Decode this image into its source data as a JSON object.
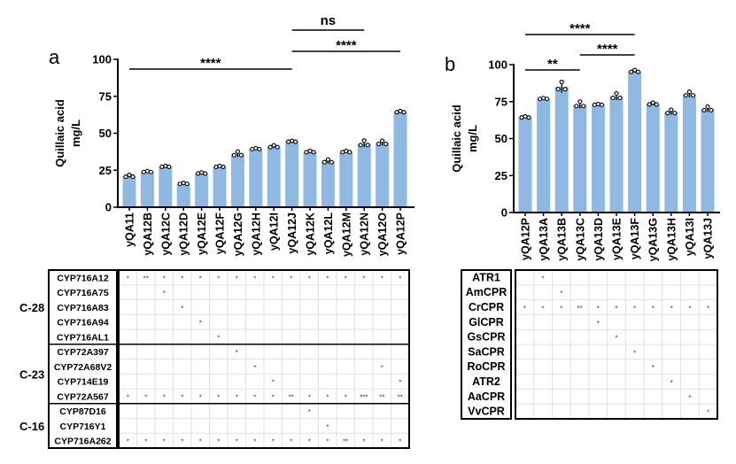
{
  "chart_data": [
    {
      "panel": "a",
      "type": "bar",
      "ylabel": [
        "Quillaic acid",
        "mg/L"
      ],
      "ylim": [
        0,
        100
      ],
      "yticks": [
        0,
        25,
        50,
        75,
        100
      ],
      "bar_color": "#8fb8e3",
      "categories": [
        "yQA11",
        "yQA12B",
        "yQA12C",
        "yQA12D",
        "yQA12E",
        "yQA12F",
        "yQA12G",
        "yQA12H",
        "yQA12I",
        "yQA12J",
        "yQA12K",
        "yQA12L",
        "yQA12M",
        "yQA12N",
        "yQA12O",
        "yQA12P"
      ],
      "values": [
        21,
        24,
        27.5,
        16,
        23,
        27.5,
        36,
        39.5,
        41,
        44.5,
        37.5,
        31,
        37.5,
        43,
        43.5,
        64.5
      ],
      "sd": [
        1,
        0.5,
        0.5,
        0.5,
        0.5,
        0.5,
        2,
        0.5,
        1,
        0.5,
        0.7,
        1.5,
        0.7,
        2.5,
        1.8,
        0.6
      ],
      "significance": [
        {
          "from": "yQA11",
          "to": "yQA12J",
          "label": "****"
        },
        {
          "from": "yQA12J",
          "to": "yQA12N",
          "label": "ns"
        },
        {
          "from": "yQA12J",
          "to": "yQA12P",
          "label": "****"
        }
      ],
      "table": {
        "groups": [
          {
            "label": "C-28",
            "rows": 5
          },
          {
            "label": "C-23",
            "rows": 4
          },
          {
            "label": "C-16",
            "rows": 3
          }
        ],
        "rows": [
          {
            "gene": "CYP716A12",
            "cells": [
              "*",
              "**",
              "*",
              "*",
              "*",
              "*",
              "*",
              "*",
              "*",
              "*",
              "*",
              "*",
              "*",
              "*",
              "*",
              "*"
            ]
          },
          {
            "gene": "CYP716A75",
            "cells": [
              "",
              "",
              "*",
              "",
              "",
              "",
              "",
              "",
              "",
              "",
              "",
              "",
              "",
              "",
              "",
              ""
            ]
          },
          {
            "gene": "CYP716A83",
            "cells": [
              "",
              "",
              "",
              "*",
              "",
              "",
              "",
              "",
              "",
              "",
              "",
              "",
              "",
              "",
              "",
              ""
            ]
          },
          {
            "gene": "CYP716A94",
            "cells": [
              "",
              "",
              "",
              "",
              "*",
              "",
              "",
              "",
              "",
              "",
              "",
              "",
              "",
              "",
              "",
              ""
            ]
          },
          {
            "gene": "CYP716AL1",
            "cells": [
              "",
              "",
              "",
              "",
              "",
              "*",
              "",
              "",
              "",
              "",
              "",
              "",
              "",
              "",
              "",
              ""
            ]
          },
          {
            "gene": "CYP72A397",
            "cells": [
              "",
              "",
              "",
              "",
              "",
              "",
              "*",
              "",
              "",
              "",
              "",
              "",
              "",
              "",
              "",
              ""
            ]
          },
          {
            "gene": "CYP72A68V2",
            "cells": [
              "",
              "",
              "",
              "",
              "",
              "",
              "",
              "*",
              "",
              "",
              "",
              "",
              "",
              "",
              "*",
              ""
            ]
          },
          {
            "gene": "CYP714E19",
            "cells": [
              "",
              "",
              "",
              "",
              "",
              "",
              "",
              "",
              "*",
              "",
              "",
              "",
              "",
              "",
              "",
              "*"
            ]
          },
          {
            "gene": "CYP72A567",
            "cells": [
              "*",
              "*",
              "*",
              "*",
              "*",
              "*",
              "*",
              "*",
              "*",
              "**",
              "*",
              "*",
              "*",
              "***",
              "**",
              "**"
            ]
          },
          {
            "gene": "CYP87D16",
            "cells": [
              "",
              "",
              "",
              "",
              "",
              "",
              "",
              "",
              "",
              "",
              "*",
              "",
              "",
              "",
              "",
              ""
            ]
          },
          {
            "gene": "CYP716Y1",
            "cells": [
              "",
              "",
              "",
              "",
              "",
              "",
              "",
              "",
              "",
              "",
              "",
              "*",
              "",
              "",
              "",
              ""
            ]
          },
          {
            "gene": "CYP716A262",
            "cells": [
              "*",
              "*",
              "*",
              "*",
              "*",
              "*",
              "*",
              "*",
              "*",
              "*",
              "*",
              "*",
              "**",
              "*",
              "*",
              "*"
            ]
          }
        ]
      }
    },
    {
      "panel": "b",
      "type": "bar",
      "ylabel": [
        "Quillaic acid",
        "mg/L"
      ],
      "ylim": [
        0,
        100
      ],
      "yticks": [
        0,
        25,
        50,
        75,
        100
      ],
      "bar_color": "#8fb8e3",
      "categories": [
        "yQA12P",
        "yQA13A",
        "yQA13B",
        "yQA13C",
        "yQA13D",
        "yQA13E",
        "yQA13F",
        "yQA13G",
        "yQA13H",
        "yQA13I",
        "yQA13J"
      ],
      "values": [
        64.5,
        77,
        85,
        73,
        73,
        78.5,
        95.5,
        73.5,
        68,
        80,
        70
      ],
      "sd": [
        0.6,
        0.5,
        4,
        2.5,
        0.4,
        2.5,
        1,
        1,
        1.8,
        2,
        2
      ],
      "significance": [
        {
          "from": "yQA12P",
          "to": "yQA13C",
          "label": "**"
        },
        {
          "from": "yQA13C",
          "to": "yQA13F",
          "label": "****"
        },
        {
          "from": "yQA12P",
          "to": "yQA13F",
          "label": "****"
        }
      ],
      "table": {
        "rows": [
          {
            "gene": "ATR1",
            "cells": [
              "",
              "*",
              "",
              "",
              "",
              "",
              "",
              "",
              "",
              "",
              ""
            ]
          },
          {
            "gene": "AmCPR",
            "cells": [
              "",
              "",
              "*",
              "",
              "",
              "",
              "",
              "",
              "",
              "",
              ""
            ]
          },
          {
            "gene": "CrCPR",
            "cells": [
              "*",
              "*",
              "*",
              "**",
              "*",
              "*",
              "*",
              "*",
              "*",
              "*",
              "*"
            ]
          },
          {
            "gene": "GlCPR",
            "cells": [
              "",
              "",
              "",
              "",
              "*",
              "",
              "",
              "",
              "",
              "",
              ""
            ]
          },
          {
            "gene": "GsCPR",
            "cells": [
              "",
              "",
              "",
              "",
              "",
              "*",
              "",
              "",
              "",
              "",
              ""
            ]
          },
          {
            "gene": "SaCPR",
            "cells": [
              "",
              "",
              "",
              "",
              "",
              "",
              "*",
              "",
              "",
              "",
              ""
            ]
          },
          {
            "gene": "RoCPR",
            "cells": [
              "",
              "",
              "",
              "",
              "",
              "",
              "",
              "*",
              "",
              "",
              ""
            ]
          },
          {
            "gene": "ATR2",
            "cells": [
              "",
              "",
              "",
              "",
              "",
              "",
              "",
              "",
              "*",
              "",
              ""
            ]
          },
          {
            "gene": "AaCPR",
            "cells": [
              "",
              "",
              "",
              "",
              "",
              "",
              "",
              "",
              "",
              "*",
              ""
            ]
          },
          {
            "gene": "VvCPR",
            "cells": [
              "",
              "",
              "",
              "",
              "",
              "",
              "",
              "",
              "",
              "",
              "*"
            ]
          }
        ]
      }
    }
  ]
}
